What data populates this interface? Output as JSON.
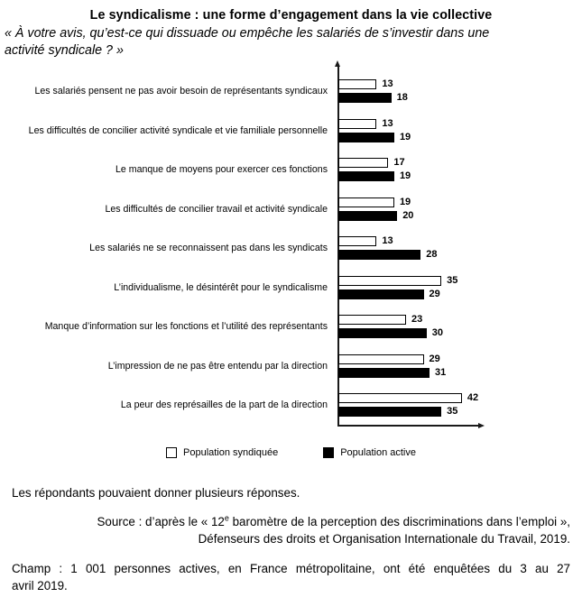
{
  "title": "Le syndicalisme : une forme d’engagement dans la vie collective",
  "subtitle_lines": [
    "« À votre avis, qu’est-ce qui dissuade ou empêche les salariés de s’investir dans une",
    "activité syndicale ? »"
  ],
  "chart_data": {
    "type": "bar",
    "orientation": "horizontal",
    "categories": [
      "Les salariés pensent ne pas avoir besoin de représentants syndicaux",
      "Les difficultés de concilier activité syndicale et vie familiale personnelle",
      "Le manque de moyens pour exercer ces fonctions",
      "Les difficultés de concilier travail et activité syndicale",
      "Les salariés ne se reconnaissent pas dans les syndicats",
      "L’individualisme, le désintérêt pour le syndicalisme",
      "Manque d’information sur les fonctions et l’utilité des représentants",
      "L’impression de ne pas être entendu par la direction",
      "La peur des représailles de la part de la direction"
    ],
    "series": [
      {
        "name": "Population syndiquée",
        "color": "#ffffff",
        "values": [
          13,
          13,
          17,
          19,
          13,
          35,
          23,
          29,
          42
        ]
      },
      {
        "name": "Population active",
        "color": "#000000",
        "values": [
          18,
          19,
          19,
          20,
          28,
          29,
          30,
          31,
          35
        ]
      }
    ],
    "xlim": [
      0,
      50
    ],
    "value_labels": true,
    "grid": false,
    "legend_position": "bottom"
  },
  "footer": {
    "note": "Les répondants pouvaient donner plusieurs réponses.",
    "source_line1_prefix": "Source : d’après le « 12",
    "source_line1_sup": "e",
    "source_line1_suffix": " baromètre de la perception des discriminations dans l’emploi »,",
    "source_line2": "Défenseurs des droits et Organisation Internationale du Travail, 2019.",
    "champ_line1": "Champ : 1 001 personnes actives, en France métropolitaine, ont été enquêtées du 3 au 27",
    "champ_line2": "avril 2019."
  }
}
